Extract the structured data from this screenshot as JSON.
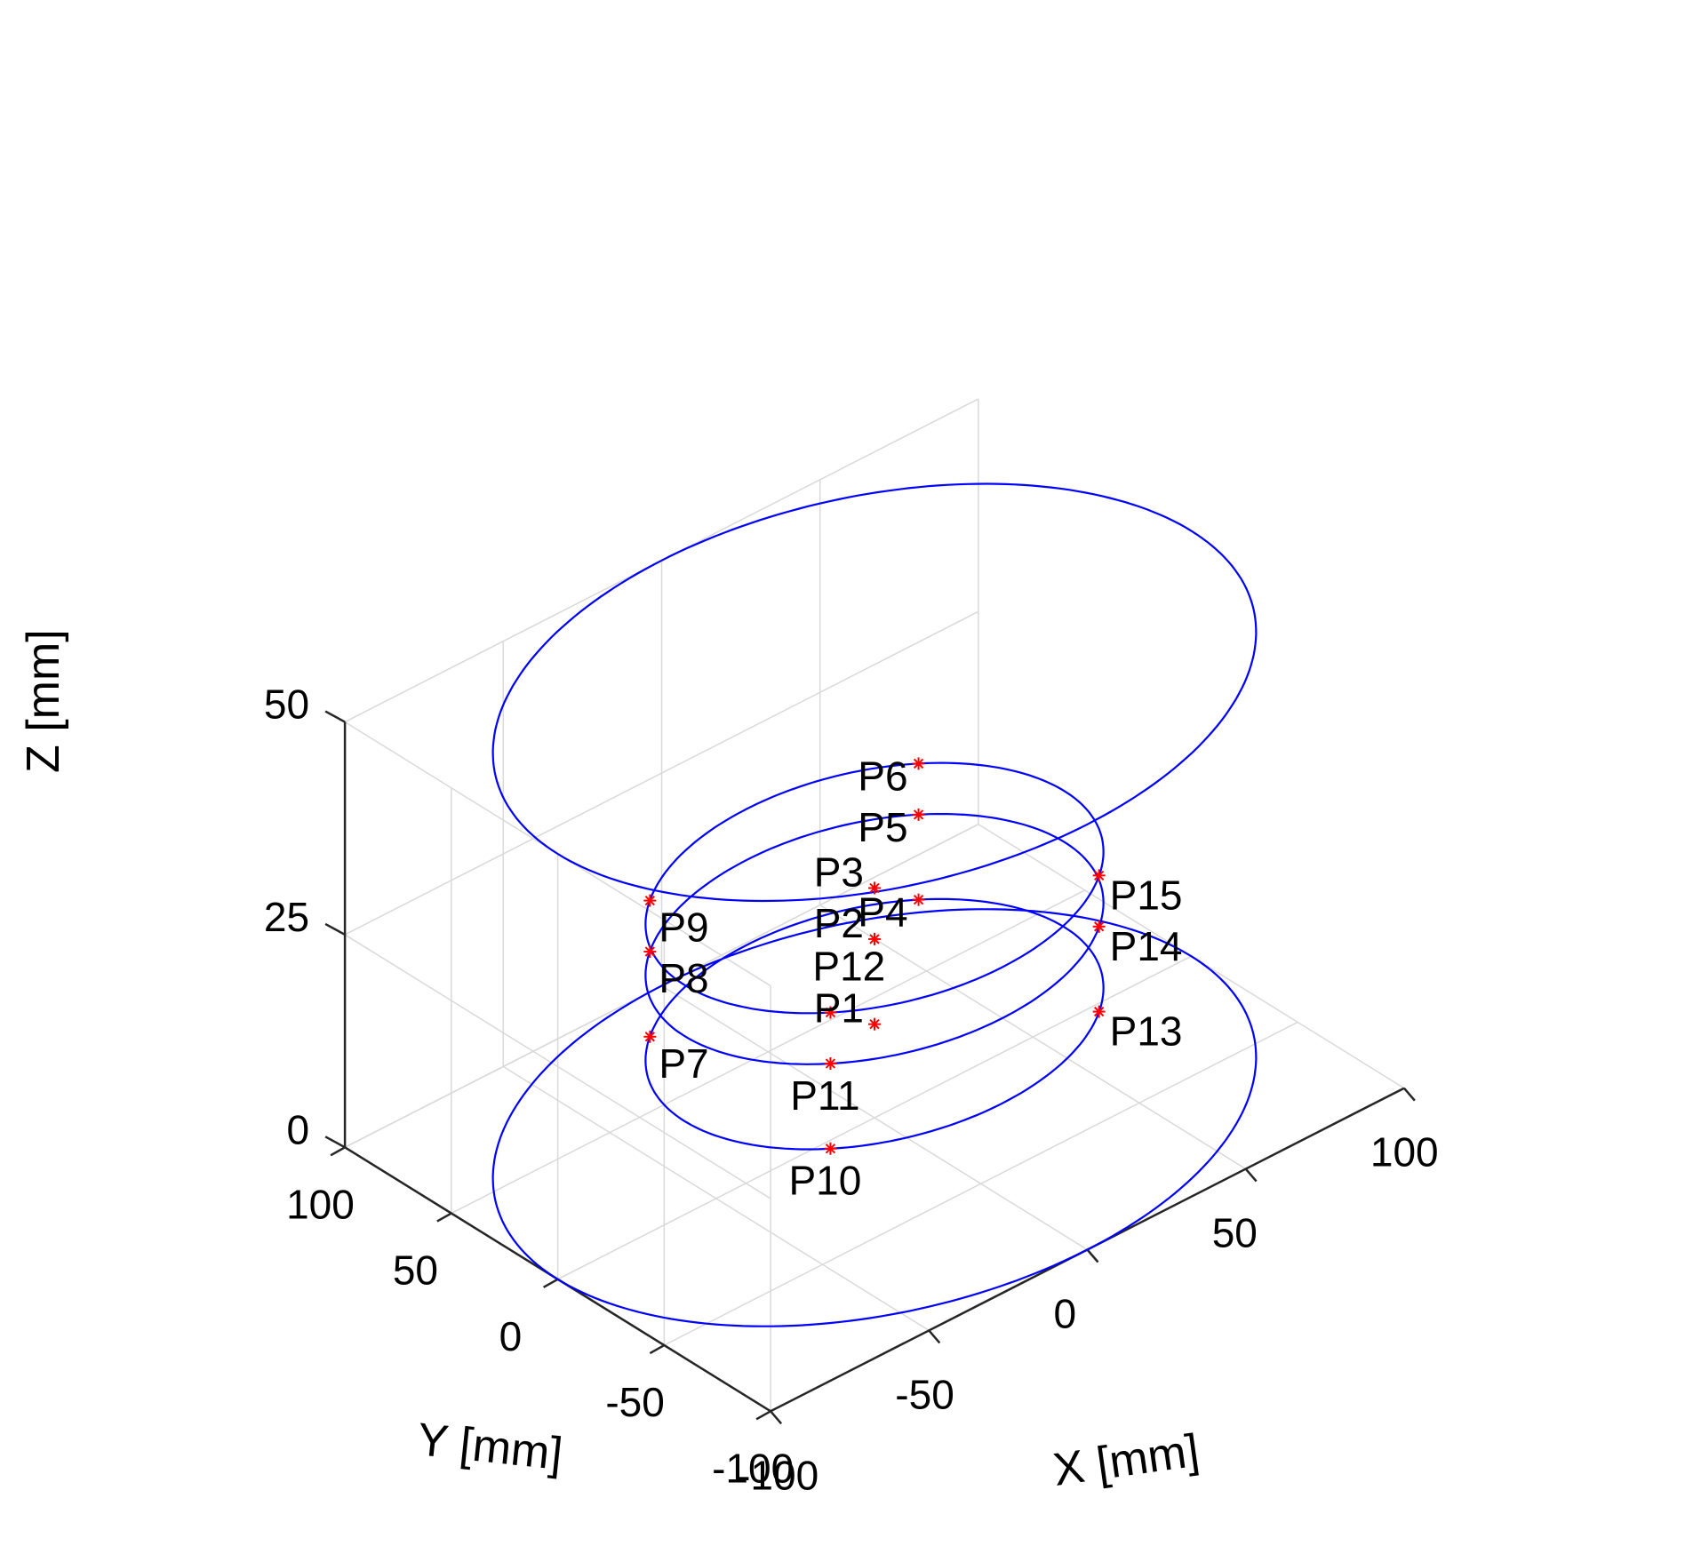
{
  "chart_data": {
    "type": "scatter3d",
    "projection": "3d-isometric",
    "grid": true,
    "xlabel": "X [mm]",
    "ylabel": "Y [mm]",
    "zlabel": "Z [mm]",
    "xlim": [
      -100,
      100
    ],
    "ylim": [
      -100,
      100
    ],
    "zlim": [
      0,
      50
    ],
    "xticks": [
      -100,
      -50,
      0,
      50,
      100
    ],
    "yticks": [
      -100,
      -50,
      0,
      50,
      100
    ],
    "zticks": [
      0,
      25,
      50
    ],
    "colors": {
      "circle": "#0000ff",
      "marker": "#ff0000",
      "grid": "#d9d9d9",
      "axis": "#262626"
    },
    "circles": [
      {
        "name": "",
        "center": [
          0,
          0
        ],
        "radius": 100,
        "z": 0
      },
      {
        "name": "",
        "center": [
          0,
          0
        ],
        "radius": 60,
        "z": 11
      },
      {
        "name": "",
        "center": [
          0,
          0
        ],
        "radius": 60,
        "z": 21
      },
      {
        "name": "",
        "center": [
          0,
          0
        ],
        "radius": 60,
        "z": 27
      },
      {
        "name": "",
        "center": [
          0,
          0
        ],
        "radius": 100,
        "z": 50
      }
    ],
    "points": [
      {
        "label": "P1",
        "x": 0,
        "y": 0,
        "z": 11
      },
      {
        "label": "P2",
        "x": 0,
        "y": 0,
        "z": 21
      },
      {
        "label": "P3",
        "x": 0,
        "y": 0,
        "z": 27
      },
      {
        "label": "P4",
        "x": 42.4,
        "y": 42.4,
        "z": 11
      },
      {
        "label": "P5",
        "x": 42.4,
        "y": 42.4,
        "z": 21
      },
      {
        "label": "P6",
        "x": 42.4,
        "y": 42.4,
        "z": 27
      },
      {
        "label": "P7",
        "x": -42.4,
        "y": 42.4,
        "z": 11
      },
      {
        "label": "P8",
        "x": -42.4,
        "y": 42.4,
        "z": 21
      },
      {
        "label": "P9",
        "x": -42.4,
        "y": 42.4,
        "z": 27
      },
      {
        "label": "P10",
        "x": -42.4,
        "y": -42.4,
        "z": 11
      },
      {
        "label": "P11",
        "x": -42.4,
        "y": -42.4,
        "z": 21
      },
      {
        "label": "P12",
        "x": -42.4,
        "y": -42.4,
        "z": 27
      },
      {
        "label": "P13",
        "x": 42.4,
        "y": -42.4,
        "z": 11
      },
      {
        "label": "P14",
        "x": 42.4,
        "y": -42.4,
        "z": 21
      },
      {
        "label": "P15",
        "x": 42.4,
        "y": -42.4,
        "z": 27
      }
    ]
  }
}
